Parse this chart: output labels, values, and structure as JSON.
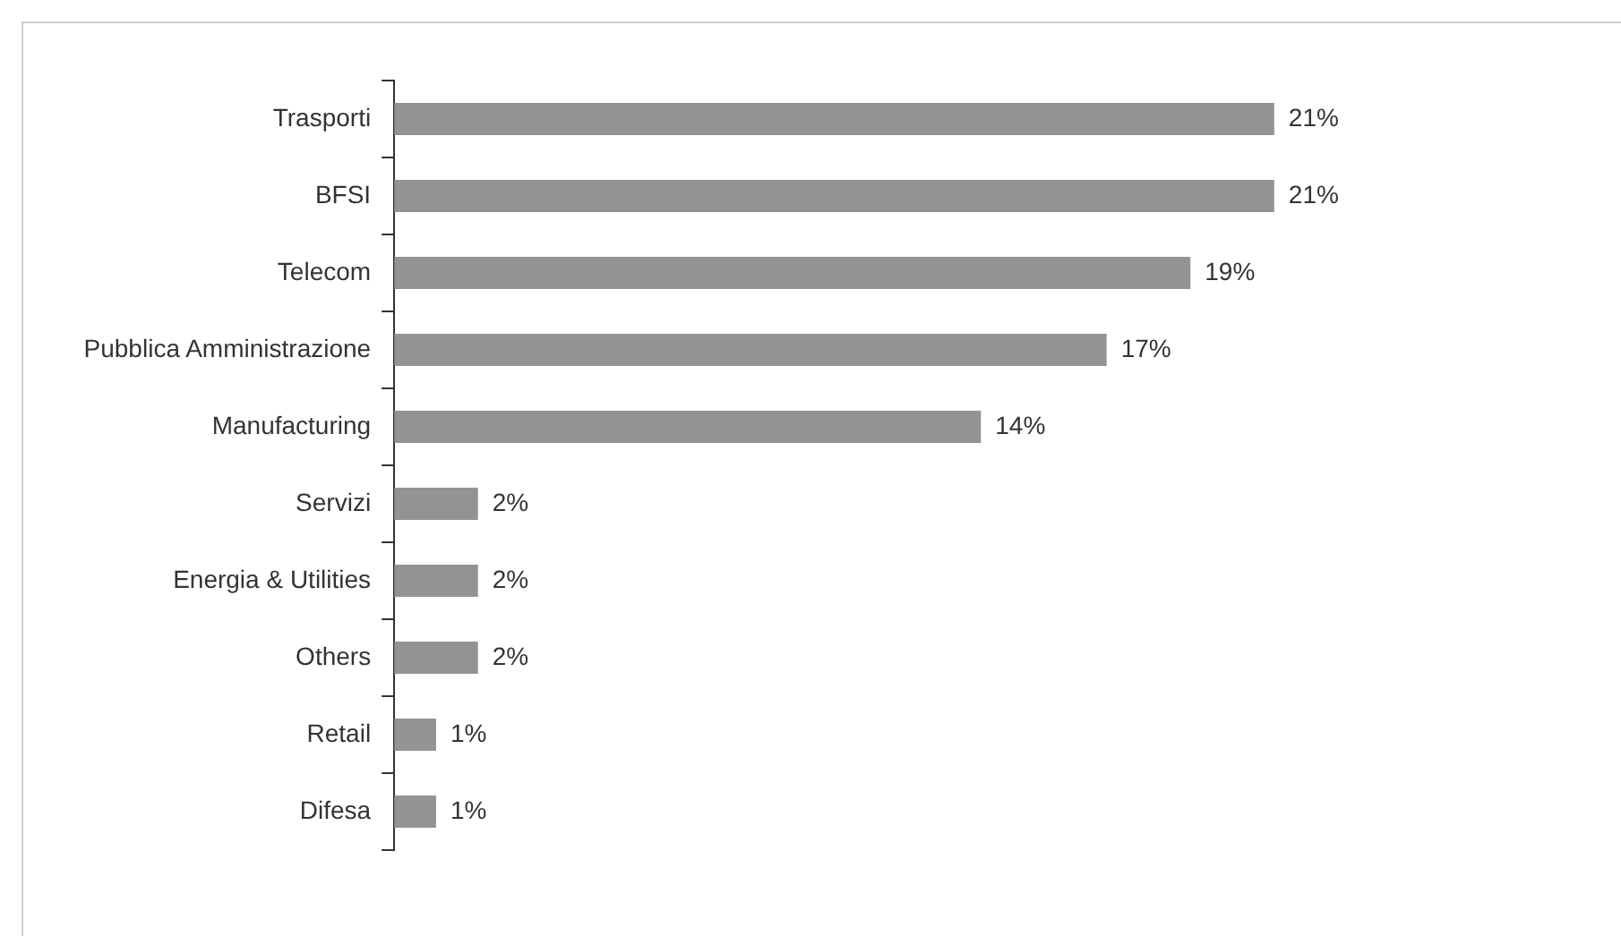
{
  "chart_data": {
    "type": "bar",
    "orientation": "horizontal",
    "categories": [
      "Trasporti",
      "BFSI",
      "Telecom",
      "Pubblica Amministrazione",
      "Manufacturing",
      "Servizi",
      "Energia & Utilities",
      "Others",
      "Retail",
      "Difesa"
    ],
    "values": [
      21,
      21,
      19,
      17,
      14,
      2,
      2,
      2,
      1,
      1
    ],
    "value_labels": [
      "21%",
      "21%",
      "19%",
      "17%",
      "14%",
      "2%",
      "2%",
      "2%",
      "1%",
      "1%"
    ],
    "color": "#939393",
    "legend": false
  }
}
